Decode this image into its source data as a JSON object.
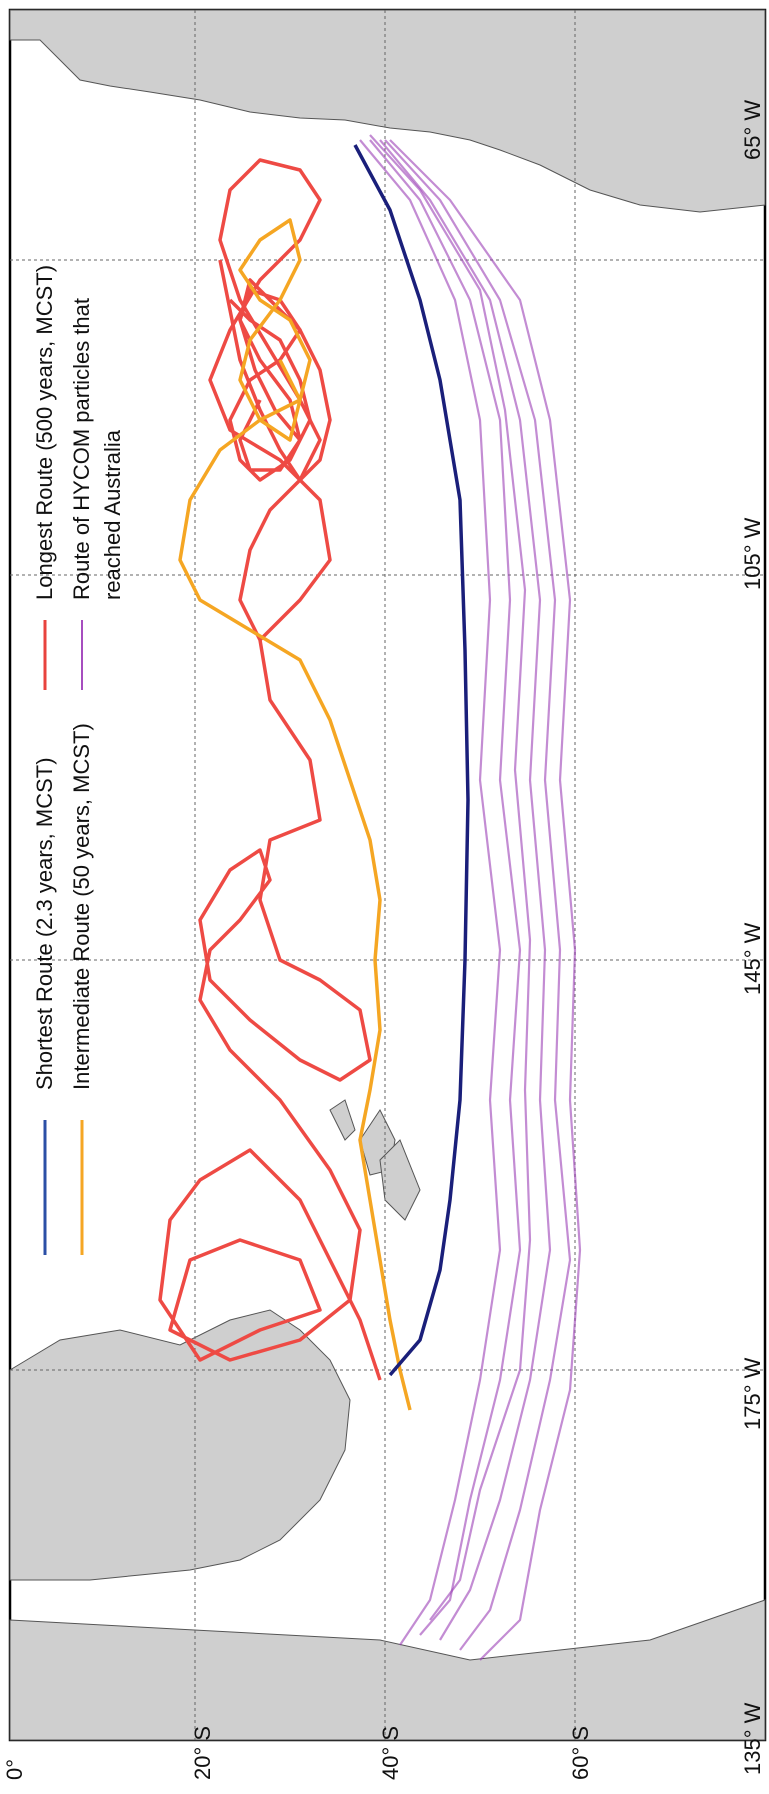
{
  "map": {
    "lat_labels": [
      "0°",
      "20° S",
      "40° S",
      "60° S"
    ],
    "lon_labels": [
      "135° W",
      "175° W",
      "145° W",
      "105° W",
      "65° W"
    ],
    "legend": [
      {
        "label": "Shortest Route (2.3 years, MCST)",
        "color": "#2b4fa6"
      },
      {
        "label": "Intermediate Route (50 years, MCST)",
        "color": "#f5a623"
      },
      {
        "label": "Longest Route (500 years, MCST)",
        "color": "#e8433e"
      },
      {
        "label": "Route of HYCOM particles that",
        "color": "#a64dbf"
      },
      {
        "label": "reached Australia",
        "color": ""
      }
    ],
    "colors": {
      "land": "#cfcfcf",
      "ocean": "#ffffff",
      "shortest": "#1a1f7a",
      "intermediate": "#f5a623",
      "longest": "#ee4a44",
      "hycom": "#9b3fb5"
    }
  }
}
